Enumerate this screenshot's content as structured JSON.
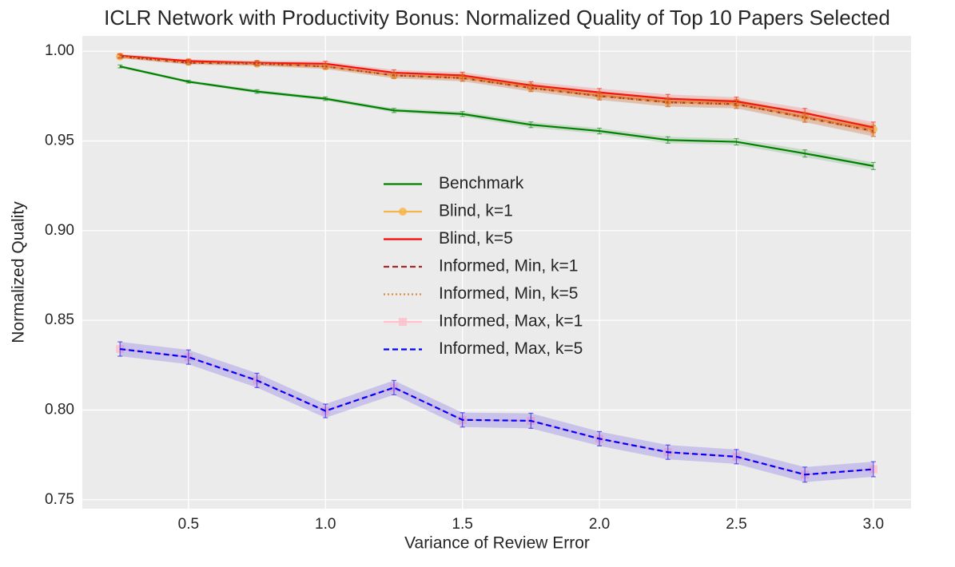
{
  "chart_data": {
    "type": "line",
    "title": "ICLR Network with Productivity Bonus: Normalized Quality of Top 10 Papers Selected",
    "x_label": "Variance of Review Error",
    "y_label": "Normalized Quality",
    "x": [
      0.25,
      0.5,
      0.75,
      1.0,
      1.25,
      1.5,
      1.75,
      2.0,
      2.25,
      2.5,
      2.75,
      3.0
    ],
    "xlim": [
      0.1125,
      3.1375
    ],
    "ylim": [
      0.745,
      1.0085
    ],
    "xticks": [
      0.5,
      {
        "value": 1,
        "label": "1.0"
      },
      1.5,
      {
        "value": 2,
        "label": "2.0"
      },
      2.5,
      {
        "value": 3,
        "label": "3.0"
      }
    ],
    "yticks": [
      0.75,
      {
        "value": 0.8,
        "label": "0.80"
      },
      0.85,
      {
        "value": 0.9,
        "label": "0.90"
      },
      0.95,
      {
        "value": 1,
        "label": "1.00"
      }
    ],
    "grid": true,
    "legend_position": "center",
    "series": [
      {
        "name": "Benchmark",
        "color": "#008000",
        "linestyle": "solid",
        "values": [
          0.9915,
          0.983,
          0.9775,
          0.9735,
          0.967,
          0.965,
          0.959,
          0.9555,
          0.9505,
          0.9495,
          0.943,
          0.936
        ],
        "errors": [
          0.0008,
          0.0008,
          0.001,
          0.001,
          0.0012,
          0.0014,
          0.0016,
          0.0016,
          0.0018,
          0.0018,
          0.002,
          0.002
        ]
      },
      {
        "name": "Blind, k=1",
        "color": "#f7b64a",
        "linestyle": "solid",
        "marker": "circle",
        "values": [
          0.997,
          0.994,
          0.993,
          0.9915,
          0.9865,
          0.9855,
          0.98,
          0.9755,
          0.972,
          0.971,
          0.9635,
          0.9565
        ],
        "errors": [
          0.001,
          0.001,
          0.0012,
          0.0014,
          0.0016,
          0.0018,
          0.002,
          0.0022,
          0.0024,
          0.0024,
          0.0026,
          0.003
        ]
      },
      {
        "name": "Blind, k=5",
        "color": "#ff0000",
        "linestyle": "solid",
        "values": [
          0.9975,
          0.9945,
          0.9935,
          0.993,
          0.988,
          0.9865,
          0.981,
          0.977,
          0.9735,
          0.972,
          0.9655,
          0.9575
        ],
        "errors": [
          0.001,
          0.001,
          0.0012,
          0.0014,
          0.0016,
          0.0018,
          0.002,
          0.0022,
          0.0024,
          0.0024,
          0.0026,
          0.003
        ]
      },
      {
        "name": "Informed, Min, k=1",
        "color": "#a52a2a",
        "linestyle": "dashed",
        "values": [
          0.997,
          0.9935,
          0.993,
          0.9915,
          0.9865,
          0.985,
          0.9795,
          0.975,
          0.9715,
          0.9705,
          0.963,
          0.9555
        ],
        "errors": [
          0.001,
          0.001,
          0.0012,
          0.0014,
          0.0016,
          0.0018,
          0.002,
          0.0022,
          0.0024,
          0.0024,
          0.0026,
          0.003
        ]
      },
      {
        "name": "Informed, Min, k=5",
        "color": "#e08a3c",
        "linestyle": "dotted",
        "values": [
          0.997,
          0.9935,
          0.993,
          0.9915,
          0.9865,
          0.985,
          0.9795,
          0.975,
          0.9715,
          0.9705,
          0.963,
          0.9555
        ],
        "errors": [
          0.001,
          0.001,
          0.0012,
          0.0014,
          0.0016,
          0.0018,
          0.002,
          0.0022,
          0.0024,
          0.0024,
          0.0026,
          0.003
        ]
      },
      {
        "name": "Informed, Max, k=1",
        "color": "#ffc0cb",
        "linestyle": "solid",
        "marker": "square",
        "values": [
          0.834,
          0.8295,
          0.8165,
          0.7995,
          0.8125,
          0.7945,
          0.794,
          0.784,
          0.7765,
          0.774,
          0.764,
          0.767
        ],
        "errors": [
          0.004,
          0.004,
          0.004,
          0.0038,
          0.004,
          0.004,
          0.0042,
          0.004,
          0.004,
          0.004,
          0.0042,
          0.0042
        ]
      },
      {
        "name": "Informed, Max, k=5",
        "color": "#0000ff",
        "linestyle": "dashed",
        "values": [
          0.834,
          0.8295,
          0.8165,
          0.7995,
          0.8125,
          0.7945,
          0.794,
          0.784,
          0.7765,
          0.774,
          0.764,
          0.767
        ],
        "errors": [
          0.004,
          0.004,
          0.004,
          0.0038,
          0.004,
          0.004,
          0.0042,
          0.004,
          0.004,
          0.004,
          0.0042,
          0.0042
        ]
      }
    ]
  }
}
